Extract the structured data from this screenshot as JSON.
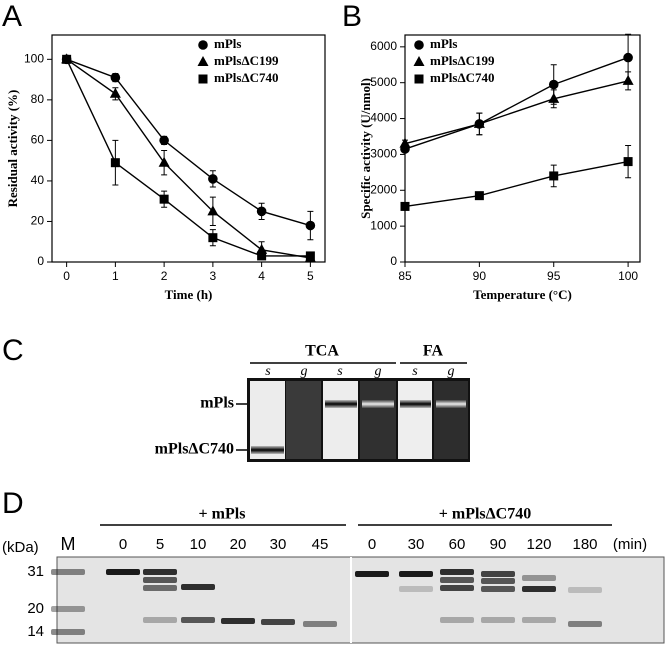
{
  "chart_data": [
    {
      "type": "line",
      "panel": "A",
      "x": [
        0,
        1,
        2,
        3,
        4,
        5
      ],
      "xlim": [
        -0.3,
        5.3
      ],
      "xticks": [
        0,
        1,
        2,
        3,
        4,
        5
      ],
      "ylim": [
        0,
        112
      ],
      "yticks": [
        0,
        20,
        40,
        60,
        80,
        100
      ],
      "xlabel": "Time (h)",
      "ylabel": "Residual activity (%)",
      "legend": "upper right",
      "series": [
        {
          "name": "mPls",
          "color": "#000000",
          "marker": "circle",
          "values": [
            100,
            91,
            60,
            41,
            25,
            18
          ],
          "errors": [
            0,
            2,
            2,
            4,
            4,
            7
          ]
        },
        {
          "name": "mPlsΔC199",
          "color": "#000000",
          "marker": "triangle",
          "values": [
            100,
            83,
            49,
            25,
            6,
            2
          ],
          "errors": [
            0,
            3,
            6,
            7,
            4,
            1
          ]
        },
        {
          "name": "mPlsΔC740",
          "color": "#000000",
          "marker": "square",
          "values": [
            100,
            49,
            31,
            12,
            3,
            3
          ],
          "errors": [
            0,
            11,
            4,
            4,
            1,
            1
          ]
        }
      ]
    },
    {
      "type": "line",
      "panel": "B",
      "x": [
        85,
        90,
        95,
        100
      ],
      "xlim": [
        85,
        100.8
      ],
      "xticks": [
        85,
        90,
        95,
        100
      ],
      "ylim": [
        0,
        6330
      ],
      "yticks": [
        0,
        1000,
        2000,
        3000,
        4000,
        5000,
        6000
      ],
      "xlabel": "Temperature (°C)",
      "ylabel": "Specific activity (U/nmol)",
      "legend": "upper left",
      "series": [
        {
          "name": "mPls",
          "color": "#000000",
          "marker": "circle",
          "values": [
            3150,
            3850,
            4950,
            5700
          ],
          "errors": [
            0,
            300,
            550,
            650
          ]
        },
        {
          "name": "mPlsΔC199",
          "color": "#000000",
          "marker": "triangle",
          "values": [
            3300,
            3850,
            4550,
            5050
          ],
          "errors": [
            100,
            300,
            250,
            250
          ]
        },
        {
          "name": "mPlsΔC740",
          "color": "#000000",
          "marker": "square",
          "values": [
            1550,
            1850,
            2400,
            2800
          ],
          "errors": [
            0,
            50,
            300,
            450
          ]
        }
      ]
    }
  ],
  "panel_c": {
    "letter": "C",
    "groups": [
      {
        "label": "TCA",
        "lanes": [
          "s",
          "g",
          "s",
          "g"
        ]
      },
      {
        "label": "FA",
        "lanes": [
          "s",
          "g"
        ]
      }
    ],
    "bands": [
      "mPls",
      "mPlsΔC740"
    ]
  },
  "panel_d": {
    "letter": "D",
    "size_unit": "(kDa)",
    "marker_lane": "M",
    "sizes": [
      "31",
      "20",
      "14"
    ],
    "time_unit": "(min)",
    "groups": [
      {
        "label": "+ mPls",
        "lanes": [
          "0",
          "5",
          "10",
          "20",
          "30",
          "45"
        ]
      },
      {
        "label": "+ mPlsΔC740",
        "lanes": [
          "0",
          "30",
          "60",
          "90",
          "120",
          "180"
        ]
      }
    ]
  }
}
